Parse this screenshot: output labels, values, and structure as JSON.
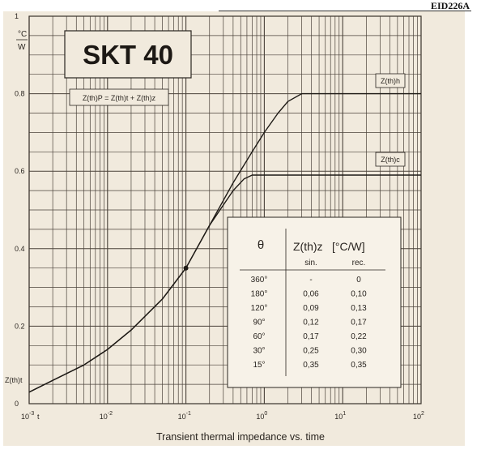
{
  "doc_id": "EID226A",
  "chart_data": {
    "type": "line",
    "title": "SKT 40",
    "formula": "Z(th)P = Z(th)t + Z(th)z",
    "xlabel": "Transient thermal impedance vs. time",
    "x_scale": "log",
    "xlim": [
      0.001,
      100
    ],
    "ylim": [
      0,
      1
    ],
    "y_unit_top": "°C",
    "y_unit_bottom": "W",
    "y_ticks": [
      {
        "v": 1,
        "label": "1"
      },
      {
        "v": 0.8,
        "label": "0.8"
      },
      {
        "v": 0.6,
        "label": "0.6"
      },
      {
        "v": 0.4,
        "label": "0.4"
      },
      {
        "v": 0.2,
        "label": "0.2"
      },
      {
        "v": 0,
        "label": "0"
      }
    ],
    "x_ticks": [
      {
        "v": 0.001,
        "base": "10",
        "exp": "-3"
      },
      {
        "v": 0.01,
        "base": "10",
        "exp": "-2"
      },
      {
        "v": 0.1,
        "base": "10",
        "exp": "-1"
      },
      {
        "v": 1,
        "base": "10",
        "exp": "0"
      },
      {
        "v": 10,
        "base": "10",
        "exp": "1"
      },
      {
        "v": 100,
        "base": "10",
        "exp": "2"
      }
    ],
    "x_axis_t_label": "t",
    "y_axis_curve_label": "Z(th)t",
    "series": [
      {
        "name": "Z(th)h",
        "x": [
          0.001,
          0.002,
          0.005,
          0.01,
          0.02,
          0.05,
          0.1,
          0.2,
          0.4,
          0.7,
          1,
          1.5,
          2,
          3,
          5,
          100
        ],
        "y": [
          0.03,
          0.06,
          0.1,
          0.14,
          0.19,
          0.27,
          0.35,
          0.46,
          0.57,
          0.65,
          0.7,
          0.75,
          0.78,
          0.8,
          0.8,
          0.8
        ]
      },
      {
        "name": "Z(th)c",
        "x": [
          0.001,
          0.002,
          0.005,
          0.01,
          0.02,
          0.05,
          0.1,
          0.2,
          0.4,
          0.55,
          0.7,
          1,
          100
        ],
        "y": [
          0.03,
          0.06,
          0.1,
          0.14,
          0.19,
          0.27,
          0.35,
          0.46,
          0.55,
          0.58,
          0.59,
          0.59,
          0.59
        ]
      }
    ],
    "marker": {
      "x": 0.1,
      "y": 0.35
    },
    "table": {
      "col_theta": "θ",
      "col_z_sym": "Z(th)z",
      "col_z_unit": "[°C/W]",
      "sub_sin": "sin.",
      "sub_rec": "rec.",
      "rows": [
        {
          "theta": "360°",
          "sin": "-",
          "rec": "0"
        },
        {
          "theta": "180°",
          "sin": "0,06",
          "rec": "0,10"
        },
        {
          "theta": "120°",
          "sin": "0,09",
          "rec": "0,13"
        },
        {
          "theta": "90°",
          "sin": "0,12",
          "rec": "0,17"
        },
        {
          "theta": "60°",
          "sin": "0,17",
          "rec": "0,22"
        },
        {
          "theta": "30°",
          "sin": "0,25",
          "rec": "0,30"
        },
        {
          "theta": "15°",
          "sin": "0,35",
          "rec": "0,35"
        }
      ]
    }
  }
}
